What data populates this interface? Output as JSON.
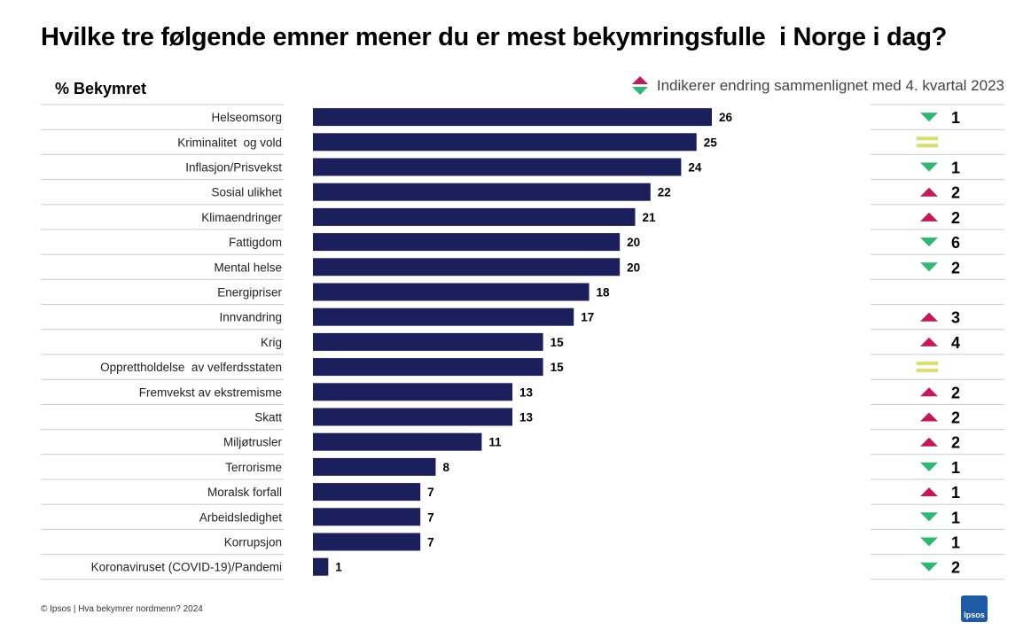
{
  "title": "Hvilke tre følgende emner mener du er mest bekymringsfulle  i Norge i dag?",
  "unit_label": "% Bekymret",
  "legend_text": "Indikerer endring sammenlignet med 4. kvartal 2023",
  "footer": "© Ipsos | Hva bekymrer nordmenn? 2024",
  "logo_text": "Ipsos",
  "colors": {
    "bar": "#1b1f5c",
    "up": "#c8185a",
    "down": "#2eb872",
    "equal": "#dedd6a",
    "gridline": "#cccccc"
  },
  "chart_data": {
    "type": "bar",
    "orientation": "horizontal",
    "title": "Hvilke tre følgende emner mener du er mest bekymringsfulle  i Norge i dag?",
    "ylabel": "% Bekymret",
    "xlim": [
      0,
      26
    ],
    "categories": [
      "Helseomsorg",
      "Kriminalitet  og vold",
      "Inflasjon/Prisvekst",
      "Sosial ulikhet",
      "Klimaendringer",
      "Fattigdom",
      "Mental helse",
      "Energipriser",
      "Innvandring",
      "Krig",
      "Opprettholdelse  av velferdsstaten",
      "Fremvekst av ekstremisme",
      "Skatt",
      "Miljøtrusler",
      "Terrorisme",
      "Moralsk forfall",
      "Arbeidsledighet",
      "Korrupsjon",
      "Koronaviruset (COVID-19)/Pandemi"
    ],
    "values": [
      26,
      25,
      24,
      22,
      21,
      20,
      20,
      18,
      17,
      15,
      15,
      13,
      13,
      11,
      8,
      7,
      7,
      7,
      1
    ],
    "changes": [
      {
        "direction": "down",
        "value": "1"
      },
      {
        "direction": "equal",
        "value": ""
      },
      {
        "direction": "down",
        "value": "1"
      },
      {
        "direction": "up",
        "value": "2"
      },
      {
        "direction": "up",
        "value": "2"
      },
      {
        "direction": "down",
        "value": "6"
      },
      {
        "direction": "down",
        "value": "2"
      },
      {
        "direction": "none",
        "value": ""
      },
      {
        "direction": "up",
        "value": "3"
      },
      {
        "direction": "up",
        "value": "4"
      },
      {
        "direction": "equal",
        "value": ""
      },
      {
        "direction": "up",
        "value": "2"
      },
      {
        "direction": "up",
        "value": "2"
      },
      {
        "direction": "up",
        "value": "2"
      },
      {
        "direction": "down",
        "value": "1"
      },
      {
        "direction": "up",
        "value": "1"
      },
      {
        "direction": "down",
        "value": "1"
      },
      {
        "direction": "down",
        "value": "1"
      },
      {
        "direction": "down",
        "value": "2"
      }
    ]
  }
}
